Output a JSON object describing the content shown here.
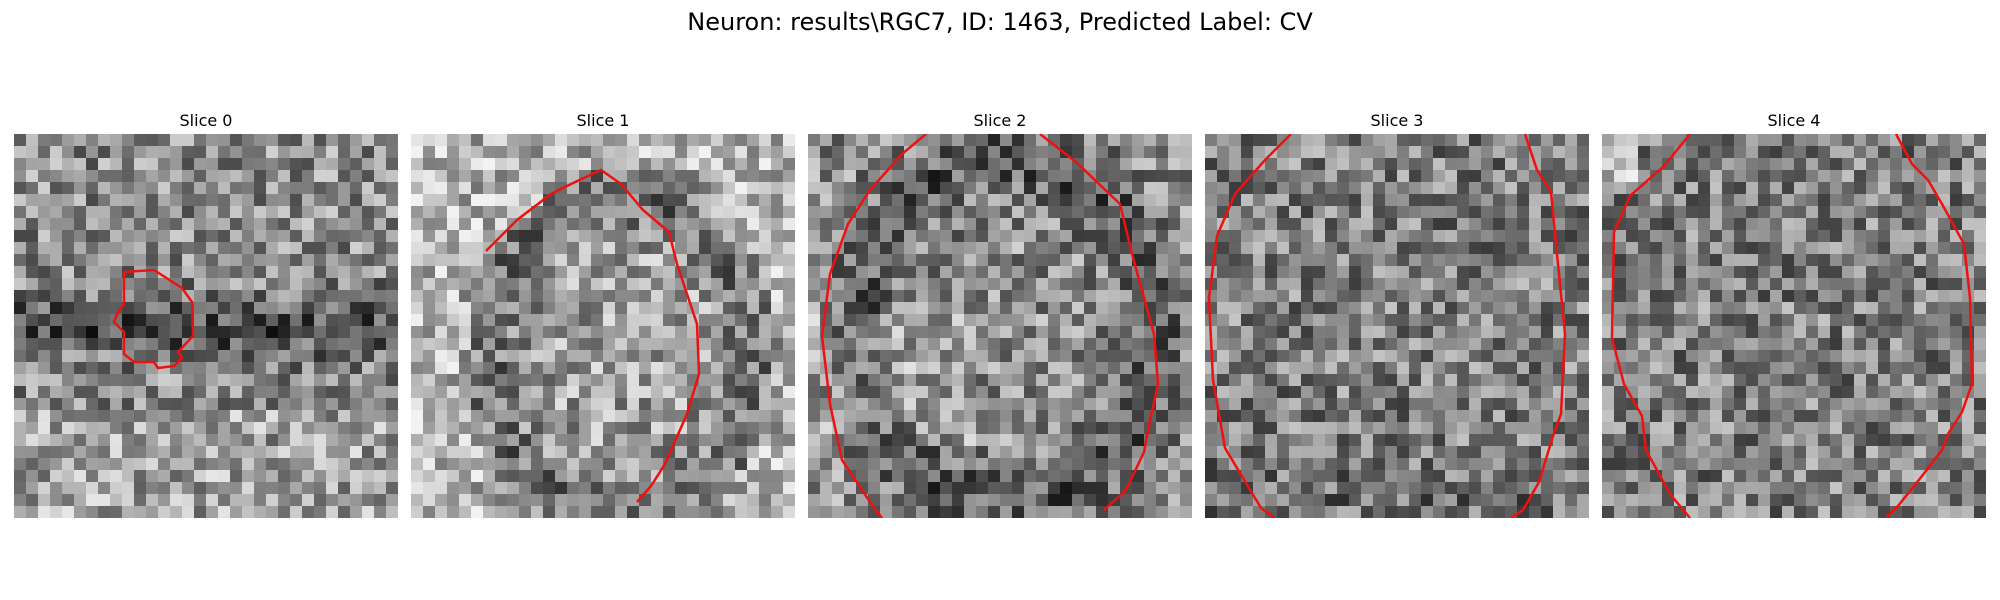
{
  "figure": {
    "title": "Neuron: results\\RGC7, ID: 1463, Predicted Label: CV",
    "contour_color": "#ee1111"
  },
  "panels": [
    {
      "title": "Slice 0"
    },
    {
      "title": "Slice 1"
    },
    {
      "title": "Slice 2"
    },
    {
      "title": "Slice 3"
    },
    {
      "title": "Slice 4"
    }
  ]
}
